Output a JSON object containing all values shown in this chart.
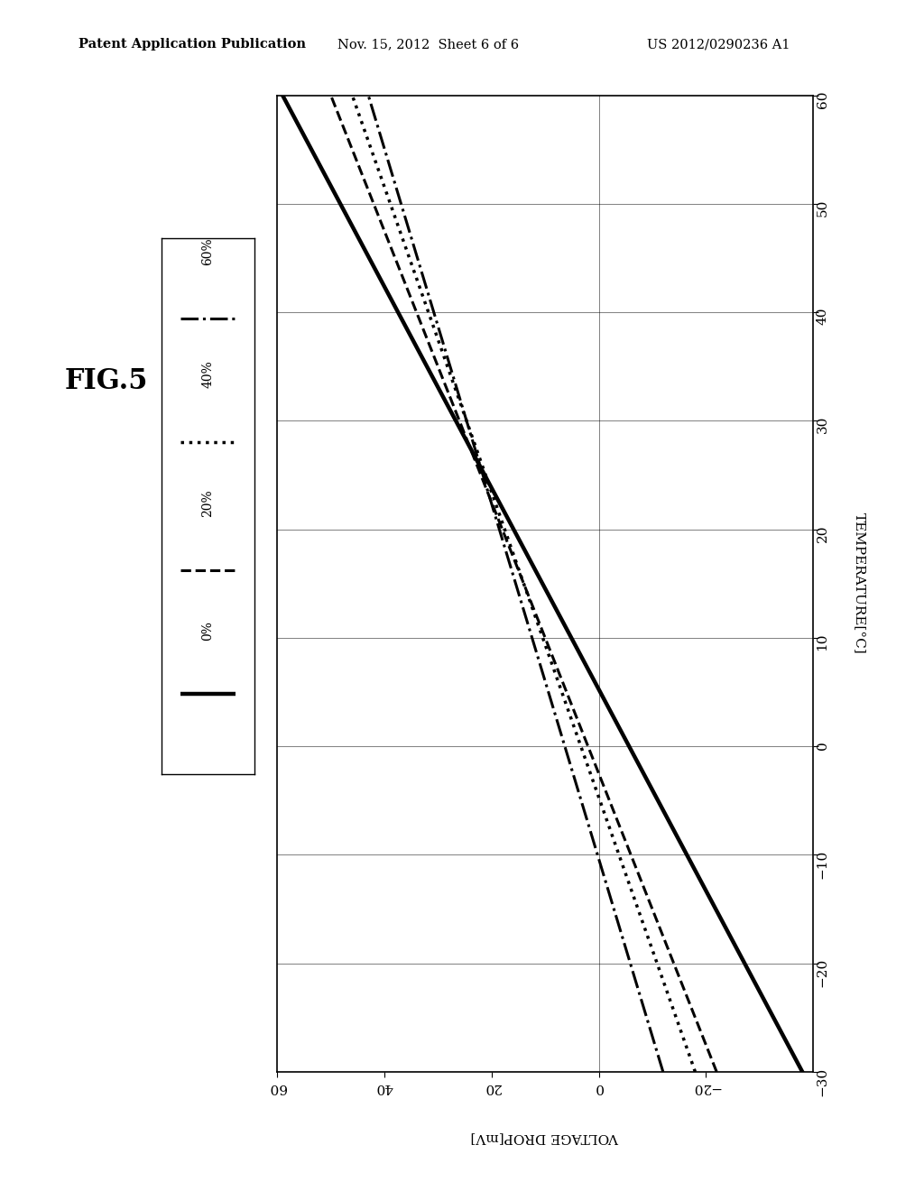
{
  "header_left": "Patent Application Publication",
  "header_mid": "Nov. 15, 2012  Sheet 6 of 6",
  "header_right": "US 2012/0290236 A1",
  "fig_label": "FIG.5",
  "temp_label": "TEMPERATURE[°C]",
  "vdrop_label": "VOLTAGE DROP[mV]",
  "temp_min": -30,
  "temp_max": 60,
  "vdrop_min": -40,
  "vdrop_max": 60,
  "temp_ticks": [
    -30,
    -20,
    -10,
    0,
    10,
    20,
    30,
    40,
    50,
    60
  ],
  "vdrop_ticks": [
    -20,
    0,
    20,
    40,
    60
  ],
  "background_color": "#ffffff",
  "lines": [
    {
      "label": "0%",
      "style": "-",
      "linewidth": 3.2,
      "color": "#000000",
      "temp_pts": [
        -30,
        60
      ],
      "vdrop_pts": [
        -38,
        59
      ]
    },
    {
      "label": "20%",
      "style": "--",
      "linewidth": 2.2,
      "color": "#000000",
      "temp_pts": [
        -30,
        60
      ],
      "vdrop_pts": [
        -22,
        50
      ]
    },
    {
      "label": "40%",
      "style": ":",
      "linewidth": 2.5,
      "color": "#000000",
      "temp_pts": [
        -30,
        60
      ],
      "vdrop_pts": [
        -18,
        46
      ]
    },
    {
      "label": "60%",
      "style": "-.",
      "linewidth": 2.2,
      "color": "#000000",
      "temp_pts": [
        -30,
        60
      ],
      "vdrop_pts": [
        -12,
        43
      ]
    }
  ],
  "vgrid_temps": [
    -20,
    -10,
    0,
    10,
    20,
    30,
    40,
    50
  ],
  "hgrid_vdrops": [
    0
  ]
}
